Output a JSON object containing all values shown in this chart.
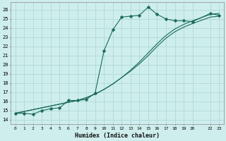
{
  "xlabel": "Humidex (Indice chaleur)",
  "bg_color": "#ceeeed",
  "grid_color": "#b0d8d8",
  "line_color": "#1a6b5a",
  "xlim": [
    -0.5,
    23.5
  ],
  "ylim": [
    13.5,
    26.8
  ],
  "xticks": [
    0,
    1,
    2,
    3,
    4,
    5,
    6,
    7,
    8,
    9,
    10,
    11,
    12,
    13,
    14,
    15,
    16,
    17,
    18,
    19,
    20,
    22,
    23
  ],
  "xtick_labels": [
    "0",
    "1",
    "2",
    "3",
    "4",
    "5",
    "6",
    "7",
    "8",
    "9",
    "10",
    "11",
    "12",
    "13",
    "14",
    "15",
    "16",
    "17",
    "18",
    "19",
    "20",
    "22",
    "23"
  ],
  "yticks": [
    14,
    15,
    16,
    17,
    18,
    19,
    20,
    21,
    22,
    23,
    24,
    25,
    26
  ],
  "line1_x": [
    0,
    1,
    2,
    3,
    4,
    5,
    6,
    7,
    8,
    9,
    10,
    11,
    12,
    13,
    14,
    15,
    16,
    17,
    18,
    19,
    20,
    22,
    23
  ],
  "line1_y": [
    14.7,
    14.7,
    14.6,
    15.0,
    15.2,
    15.3,
    16.1,
    16.1,
    16.2,
    16.9,
    21.5,
    23.8,
    25.2,
    25.3,
    25.4,
    26.3,
    25.5,
    25.0,
    24.8,
    24.8,
    24.7,
    25.6,
    25.4
  ],
  "line2_x": [
    0,
    1,
    2,
    3,
    4,
    5,
    6,
    7,
    8,
    9,
    10,
    11,
    12,
    13,
    14,
    15,
    16,
    17,
    18,
    19,
    20,
    22,
    23
  ],
  "line2_y": [
    14.7,
    14.9,
    15.1,
    15.3,
    15.5,
    15.7,
    15.9,
    16.1,
    16.4,
    16.8,
    17.3,
    17.9,
    18.6,
    19.4,
    20.3,
    21.3,
    22.3,
    23.2,
    23.9,
    24.4,
    24.8,
    25.5,
    25.6
  ],
  "line3_x": [
    0,
    1,
    2,
    3,
    4,
    5,
    6,
    7,
    8,
    9,
    10,
    11,
    12,
    13,
    14,
    15,
    16,
    17,
    18,
    19,
    20,
    22,
    23
  ],
  "line3_y": [
    14.7,
    14.9,
    15.1,
    15.3,
    15.5,
    15.7,
    15.9,
    16.1,
    16.4,
    16.8,
    17.3,
    17.9,
    18.6,
    19.3,
    20.1,
    21.0,
    22.0,
    22.9,
    23.6,
    24.1,
    24.5,
    25.2,
    25.3
  ]
}
